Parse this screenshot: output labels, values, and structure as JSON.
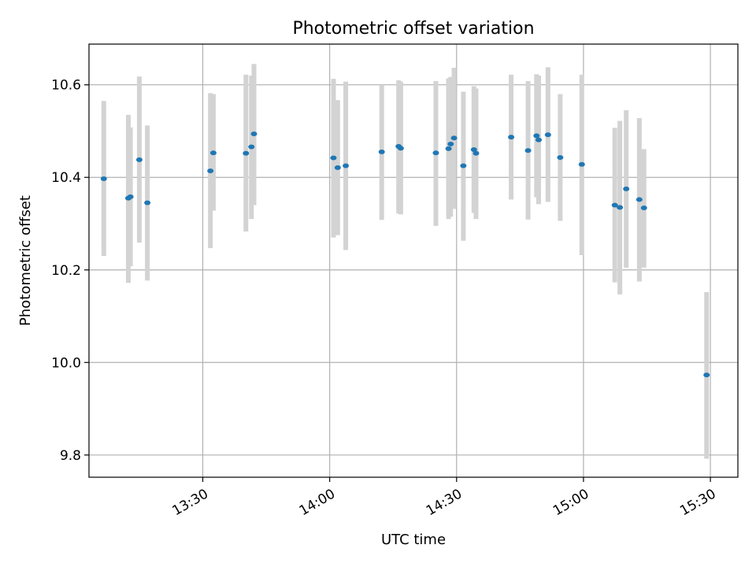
{
  "chart_data": {
    "type": "scatter",
    "title": "Photometric offset variation",
    "xlabel": "UTC time",
    "ylabel": "Photometric offset",
    "x_tick_labels": [
      "13:30",
      "14:00",
      "14:30",
      "15:00",
      "15:30"
    ],
    "x_ticks_min": [
      810,
      840,
      870,
      900,
      930
    ],
    "y_ticks": [
      9.8,
      10.0,
      10.2,
      10.4,
      10.6
    ],
    "y_tick_labels": [
      "9.8",
      "10.0",
      "10.2",
      "10.4",
      "10.6"
    ],
    "xlim_min": [
      783.1,
      936.5
    ],
    "ylim": [
      9.752,
      10.688
    ],
    "grid": true,
    "colors": {
      "point": "#1f77b4",
      "errorbar": "#d3d3d3",
      "grid": "#b0b0b0"
    },
    "series": [
      {
        "points": [
          {
            "t": 786.6,
            "y": 10.397,
            "lo": 10.23,
            "hi": 10.565
          },
          {
            "t": 792.4,
            "y": 10.355,
            "lo": 10.172,
            "hi": 10.535
          },
          {
            "t": 792.9,
            "y": 10.358,
            "lo": 10.208,
            "hi": 10.508
          },
          {
            "t": 795.0,
            "y": 10.438,
            "lo": 10.259,
            "hi": 10.618
          },
          {
            "t": 796.9,
            "y": 10.345,
            "lo": 10.177,
            "hi": 10.512
          },
          {
            "t": 811.8,
            "y": 10.414,
            "lo": 10.247,
            "hi": 10.582
          },
          {
            "t": 812.5,
            "y": 10.453,
            "lo": 10.328,
            "hi": 10.58
          },
          {
            "t": 820.2,
            "y": 10.452,
            "lo": 10.283,
            "hi": 10.622
          },
          {
            "t": 821.5,
            "y": 10.466,
            "lo": 10.31,
            "hi": 10.62
          },
          {
            "t": 822.1,
            "y": 10.494,
            "lo": 10.34,
            "hi": 10.645
          },
          {
            "t": 840.9,
            "y": 10.442,
            "lo": 10.27,
            "hi": 10.613
          },
          {
            "t": 841.9,
            "y": 10.421,
            "lo": 10.275,
            "hi": 10.567
          },
          {
            "t": 843.8,
            "y": 10.425,
            "lo": 10.243,
            "hi": 10.607
          },
          {
            "t": 852.3,
            "y": 10.455,
            "lo": 10.308,
            "hi": 10.6
          },
          {
            "t": 856.3,
            "y": 10.467,
            "lo": 10.322,
            "hi": 10.61
          },
          {
            "t": 856.8,
            "y": 10.463,
            "lo": 10.32,
            "hi": 10.607
          },
          {
            "t": 865.1,
            "y": 10.453,
            "lo": 10.295,
            "hi": 10.608
          },
          {
            "t": 868.1,
            "y": 10.462,
            "lo": 10.31,
            "hi": 10.614
          },
          {
            "t": 868.6,
            "y": 10.472,
            "lo": 10.315,
            "hi": 10.617
          },
          {
            "t": 869.4,
            "y": 10.485,
            "lo": 10.332,
            "hi": 10.637
          },
          {
            "t": 871.6,
            "y": 10.425,
            "lo": 10.263,
            "hi": 10.585
          },
          {
            "t": 874.1,
            "y": 10.46,
            "lo": 10.323,
            "hi": 10.597
          },
          {
            "t": 874.6,
            "y": 10.452,
            "lo": 10.31,
            "hi": 10.592
          },
          {
            "t": 882.9,
            "y": 10.487,
            "lo": 10.352,
            "hi": 10.622
          },
          {
            "t": 886.9,
            "y": 10.458,
            "lo": 10.309,
            "hi": 10.608
          },
          {
            "t": 888.9,
            "y": 10.49,
            "lo": 10.357,
            "hi": 10.623
          },
          {
            "t": 889.4,
            "y": 10.481,
            "lo": 10.342,
            "hi": 10.62
          },
          {
            "t": 891.6,
            "y": 10.492,
            "lo": 10.347,
            "hi": 10.638
          },
          {
            "t": 894.5,
            "y": 10.443,
            "lo": 10.306,
            "hi": 10.58
          },
          {
            "t": 899.6,
            "y": 10.428,
            "lo": 10.232,
            "hi": 10.622
          },
          {
            "t": 907.4,
            "y": 10.34,
            "lo": 10.173,
            "hi": 10.507
          },
          {
            "t": 908.6,
            "y": 10.335,
            "lo": 10.147,
            "hi": 10.522
          },
          {
            "t": 910.1,
            "y": 10.375,
            "lo": 10.205,
            "hi": 10.545
          },
          {
            "t": 913.2,
            "y": 10.352,
            "lo": 10.175,
            "hi": 10.528
          },
          {
            "t": 914.3,
            "y": 10.334,
            "lo": 10.205,
            "hi": 10.461
          },
          {
            "t": 929.1,
            "y": 9.973,
            "lo": 9.792,
            "hi": 10.152
          }
        ]
      }
    ]
  }
}
